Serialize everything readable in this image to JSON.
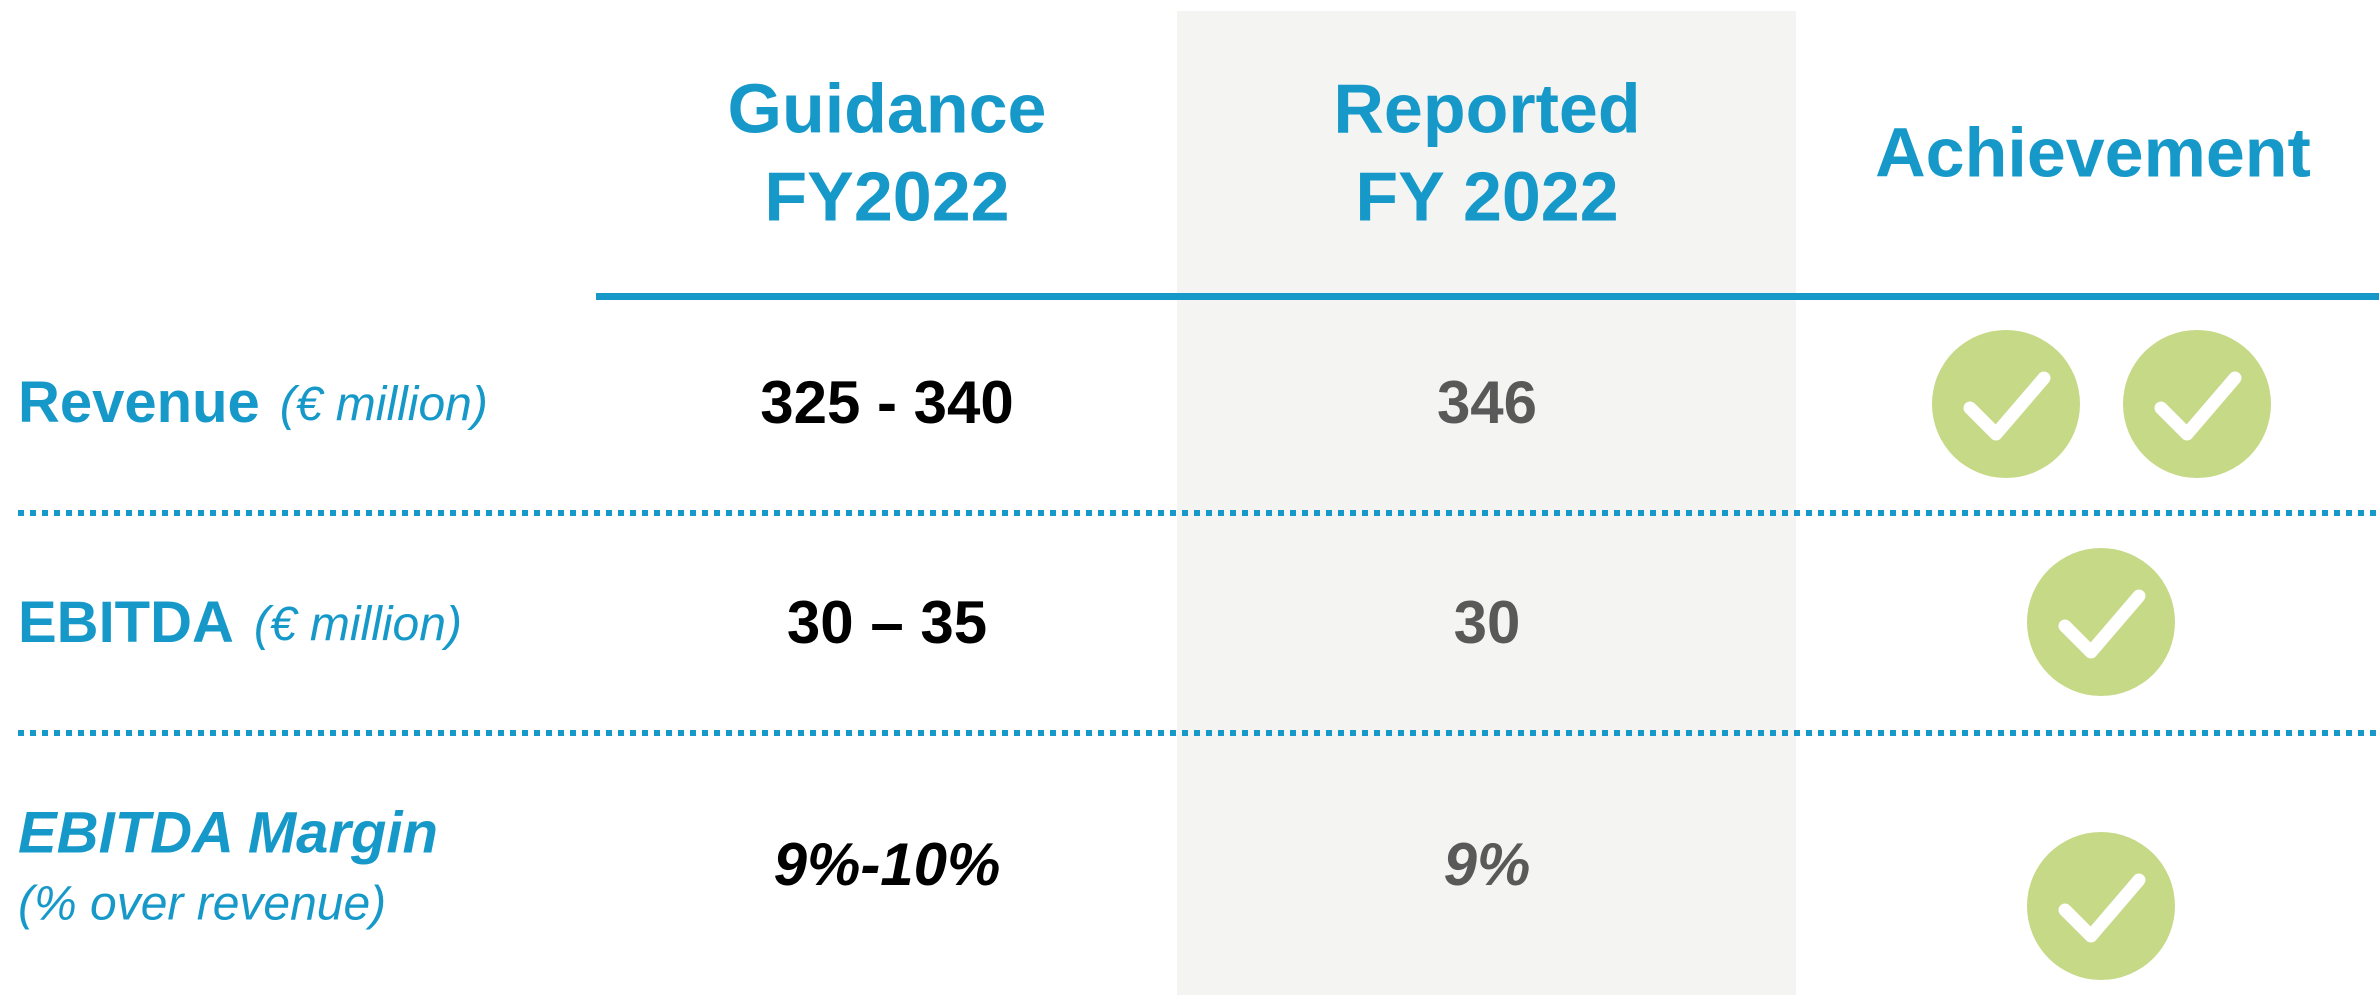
{
  "header": {
    "columns": [
      [
        "Guidance",
        "FY2022"
      ],
      [
        "Reported",
        "FY 2022"
      ],
      [
        "Achievement"
      ]
    ]
  },
  "rows": [
    {
      "label": "Revenue",
      "unit": "(€ million)",
      "guidance": "325 - 340",
      "reported": 346
    },
    {
      "label": "EBITDA",
      "unit": "(€ million)",
      "guidance": "30 – 35",
      "reported": 30
    },
    {
      "label": "EBITDA Margin",
      "unit": "(% over revenue)",
      "guidance": "9%-10%",
      "reported": "9%"
    }
  ]
}
